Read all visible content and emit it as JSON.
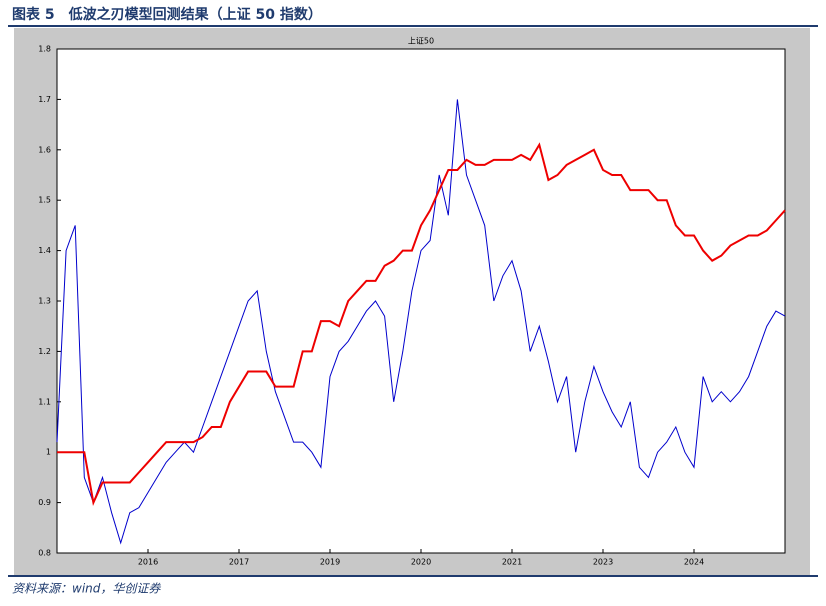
{
  "header": {
    "title": "图表 5　低波之刃模型回测结果（上证 50 指数）"
  },
  "footer": {
    "source": "资料来源：wind，华创证券"
  },
  "chart_data": {
    "type": "line",
    "title": "上证50",
    "categories": [
      null,
      null,
      null,
      null,
      null,
      null,
      null,
      null,
      null,
      null,
      "2016",
      null,
      null,
      null,
      null,
      null,
      null,
      null,
      null,
      null,
      "2017",
      null,
      null,
      null,
      null,
      null,
      null,
      null,
      null,
      null,
      "2019",
      null,
      null,
      null,
      null,
      null,
      null,
      null,
      null,
      null,
      "2020",
      null,
      null,
      null,
      null,
      null,
      null,
      null,
      null,
      null,
      "2021",
      null,
      null,
      null,
      null,
      null,
      null,
      null,
      null,
      null,
      "2023",
      null,
      null,
      null,
      null,
      null,
      null,
      null,
      null,
      null,
      "2024",
      null,
      null,
      null,
      null,
      null,
      null,
      null,
      null,
      null,
      null
    ],
    "series": [
      {
        "color": "#0000cc",
        "values": [
          1.02,
          1.4,
          1.45,
          0.95,
          0.9,
          0.95,
          0.88,
          0.82,
          0.88,
          0.89,
          0.92,
          0.95,
          0.98,
          1.0,
          1.02,
          1.0,
          1.05,
          1.1,
          1.15,
          1.2,
          1.25,
          1.3,
          1.32,
          1.2,
          1.12,
          1.07,
          1.02,
          1.02,
          1.0,
          0.97,
          1.15,
          1.2,
          1.22,
          1.25,
          1.28,
          1.3,
          1.27,
          1.1,
          1.2,
          1.32,
          1.4,
          1.42,
          1.55,
          1.47,
          1.7,
          1.55,
          1.5,
          1.45,
          1.3,
          1.35,
          1.38,
          1.32,
          1.2,
          1.25,
          1.18,
          1.1,
          1.15,
          1.0,
          1.1,
          1.17,
          1.12,
          1.08,
          1.05,
          1.1,
          0.97,
          0.95,
          1.0,
          1.02,
          1.05,
          1.0,
          0.97,
          1.15,
          1.1,
          1.12,
          1.1,
          1.12,
          1.15,
          1.2,
          1.25,
          1.28,
          1.27
        ]
      },
      {
        "color": "#ee0000",
        "values": [
          1.0,
          1.0,
          1.0,
          1.0,
          0.9,
          0.94,
          0.94,
          0.94,
          0.94,
          0.96,
          0.98,
          1.0,
          1.02,
          1.02,
          1.02,
          1.02,
          1.03,
          1.05,
          1.05,
          1.1,
          1.13,
          1.16,
          1.16,
          1.16,
          1.13,
          1.13,
          1.13,
          1.2,
          1.2,
          1.26,
          1.26,
          1.25,
          1.3,
          1.32,
          1.34,
          1.34,
          1.37,
          1.38,
          1.4,
          1.4,
          1.45,
          1.48,
          1.52,
          1.56,
          1.56,
          1.58,
          1.57,
          1.57,
          1.58,
          1.58,
          1.58,
          1.59,
          1.58,
          1.61,
          1.54,
          1.55,
          1.57,
          1.58,
          1.59,
          1.6,
          1.56,
          1.55,
          1.55,
          1.52,
          1.52,
          1.52,
          1.5,
          1.5,
          1.45,
          1.43,
          1.43,
          1.4,
          1.38,
          1.39,
          1.41,
          1.42,
          1.43,
          1.43,
          1.44,
          1.46,
          1.48
        ]
      }
    ],
    "ylim": [
      0.8,
      1.8
    ],
    "yticks": [
      0.8,
      0.9,
      1,
      1.1,
      1.2,
      1.3,
      1.4,
      1.5,
      1.6,
      1.7,
      1.8
    ]
  }
}
